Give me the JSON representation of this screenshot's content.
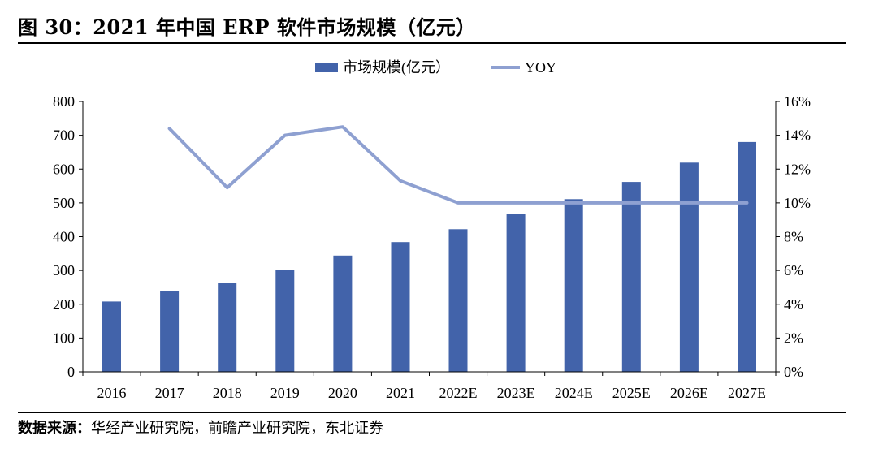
{
  "figure": {
    "title": "图 30：2021 年中国 ERP 软件市场规模（亿元）",
    "source_label": "数据来源：",
    "source_text": "华经产业研究院，前瞻产业研究院，东北证券"
  },
  "colors": {
    "bar": "#4263aa",
    "line": "#8ea0d1",
    "axis": "#000000"
  },
  "chart_data": {
    "type": "bar",
    "categories": [
      "2016",
      "2017",
      "2018",
      "2019",
      "2020",
      "2021",
      "2022E",
      "2023E",
      "2024E",
      "2025E",
      "2026E",
      "2027E"
    ],
    "series": [
      {
        "name": "市场规模(亿元）",
        "type": "bar",
        "axis": "left",
        "values": [
          208,
          238,
          264,
          301,
          344,
          384,
          422,
          466,
          511,
          562,
          619,
          680
        ]
      },
      {
        "name": "YOY",
        "type": "line",
        "axis": "right",
        "values": [
          null,
          14.4,
          10.9,
          14.0,
          14.5,
          11.3,
          10.0,
          10.0,
          10.0,
          10.0,
          10.0,
          10.0
        ]
      }
    ],
    "ylim_left": [
      0,
      800
    ],
    "yticks_left": [
      "0",
      "100",
      "200",
      "300",
      "400",
      "500",
      "600",
      "700",
      "800"
    ],
    "ylim_right": [
      0,
      16
    ],
    "yticks_right": [
      "0%",
      "2%",
      "4%",
      "6%",
      "8%",
      "10%",
      "12%",
      "14%",
      "16%"
    ],
    "legend_position": "top-center",
    "grid": false
  }
}
